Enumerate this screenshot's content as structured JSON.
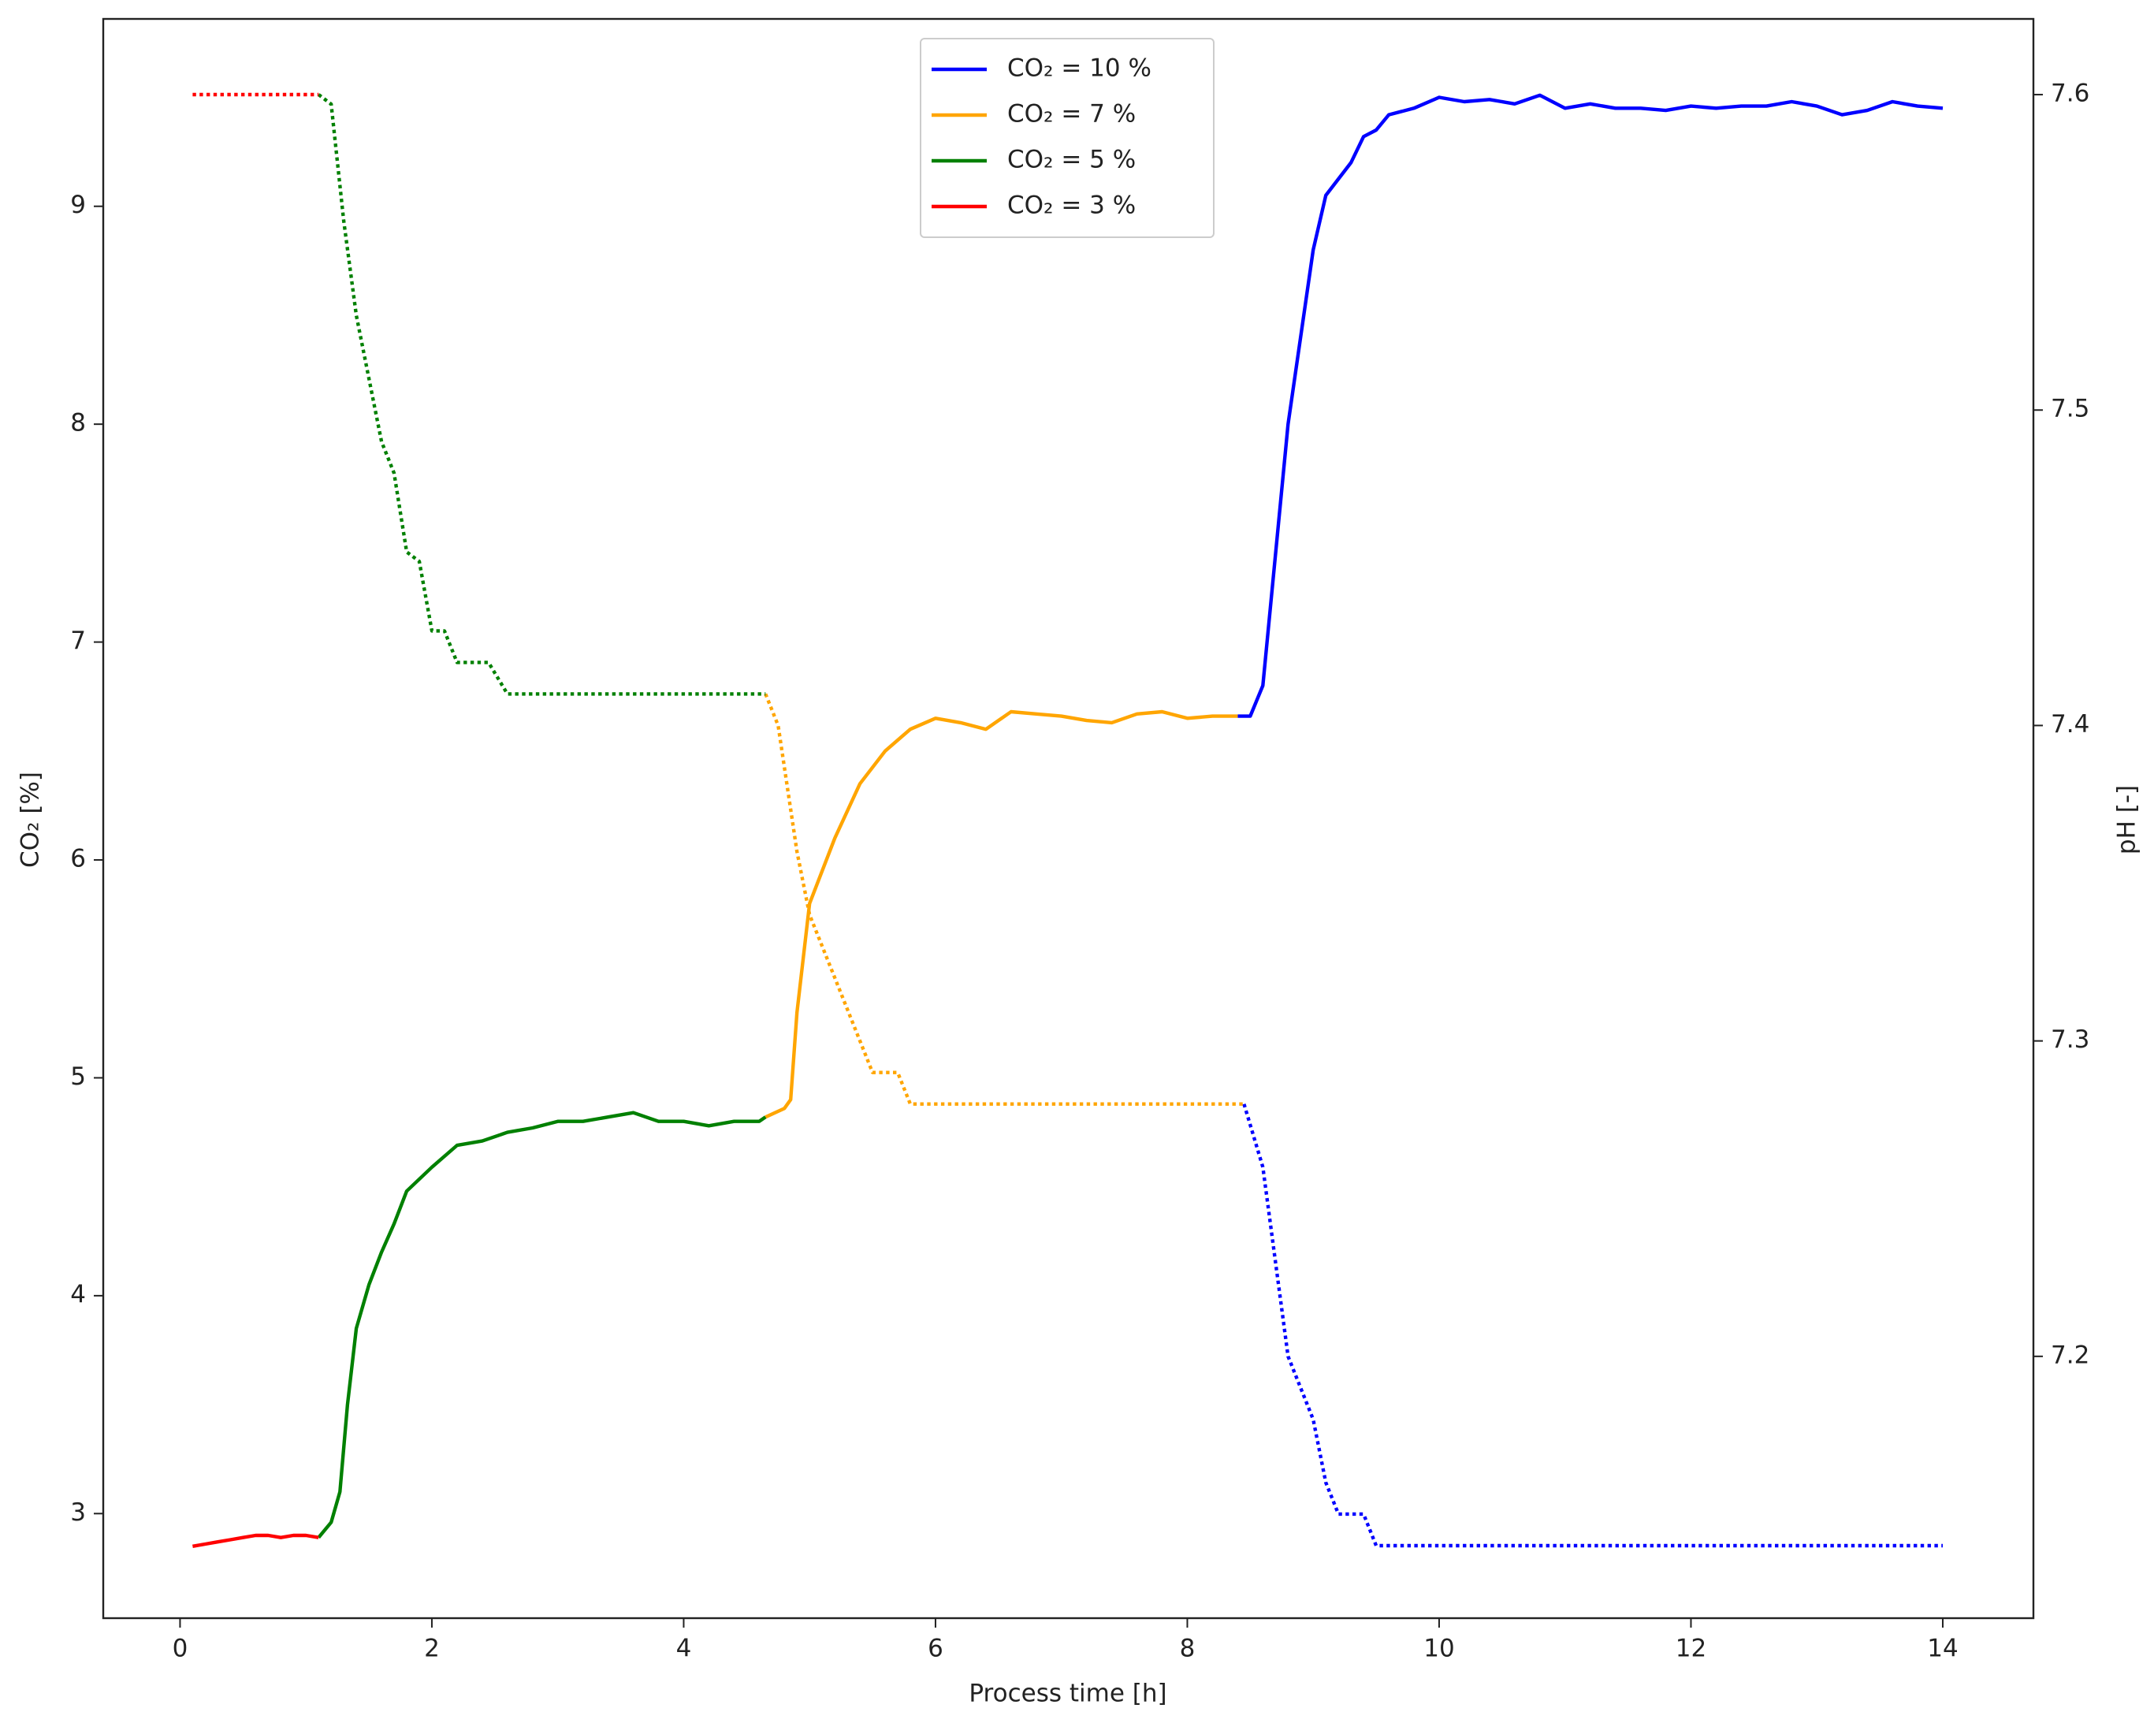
{
  "chart_data": {
    "type": "line",
    "x_label": "Process time [h]",
    "y_label": "CO₂ [%]",
    "y2_label": "pH [-]",
    "xlim": [
      -0.61,
      14.72
    ],
    "ylim": [
      2.52,
      9.86
    ],
    "y2lim": [
      7.117,
      7.624
    ],
    "xticks": [
      0,
      2,
      4,
      6,
      8,
      10,
      12,
      14
    ],
    "yticks": [
      3,
      4,
      5,
      6,
      7,
      8,
      9
    ],
    "y2ticks": [
      7.2,
      7.3,
      7.4,
      7.5,
      7.6
    ],
    "legend": "upper center",
    "series": [
      {
        "name": "CO₂ = 10 %",
        "color": "#0000ff",
        "style": "solid",
        "x": [
          8.4,
          8.5,
          8.6,
          8.8,
          9.0,
          9.1,
          9.3,
          9.4,
          9.5,
          9.6,
          9.8,
          10.0,
          10.2,
          10.4,
          10.6,
          10.8,
          11.0,
          11.2,
          11.4,
          11.6,
          11.8,
          12.0,
          12.2,
          12.4,
          12.6,
          12.8,
          13.0,
          13.2,
          13.4,
          13.6,
          13.8,
          14.0
        ],
        "values": [
          6.66,
          6.66,
          6.8,
          8.0,
          8.8,
          9.05,
          9.2,
          9.32,
          9.35,
          9.42,
          9.45,
          9.5,
          9.48,
          9.49,
          9.47,
          9.51,
          9.45,
          9.47,
          9.45,
          9.45,
          9.44,
          9.46,
          9.45,
          9.46,
          9.46,
          9.48,
          9.46,
          9.42,
          9.44,
          9.48,
          9.46,
          9.45
        ]
      },
      {
        "name": "CO₂ = 7 %",
        "color": "#ffa500",
        "style": "solid",
        "x": [
          4.65,
          4.8,
          4.85,
          4.9,
          5.0,
          5.2,
          5.4,
          5.6,
          5.8,
          6.0,
          6.2,
          6.4,
          6.6,
          6.8,
          7.0,
          7.2,
          7.4,
          7.6,
          7.8,
          8.0,
          8.2,
          8.4
        ],
        "values": [
          4.82,
          4.86,
          4.9,
          5.3,
          5.8,
          6.1,
          6.35,
          6.5,
          6.6,
          6.65,
          6.63,
          6.6,
          6.68,
          6.67,
          6.66,
          6.64,
          6.63,
          6.67,
          6.68,
          6.65,
          6.66,
          6.66
        ]
      },
      {
        "name": "CO₂ = 5 %",
        "color": "#008000",
        "style": "solid",
        "x": [
          1.1,
          1.2,
          1.27,
          1.33,
          1.4,
          1.5,
          1.6,
          1.7,
          1.8,
          2.0,
          2.2,
          2.4,
          2.6,
          2.8,
          3.0,
          3.2,
          3.4,
          3.6,
          3.8,
          4.0,
          4.2,
          4.4,
          4.6,
          4.65
        ],
        "values": [
          2.89,
          2.96,
          3.1,
          3.5,
          3.85,
          4.05,
          4.2,
          4.33,
          4.48,
          4.59,
          4.69,
          4.71,
          4.75,
          4.77,
          4.8,
          4.8,
          4.82,
          4.84,
          4.8,
          4.8,
          4.78,
          4.8,
          4.8,
          4.82
        ]
      },
      {
        "name": "CO₂ = 3 %",
        "color": "#ff0000",
        "style": "solid",
        "x": [
          0.1,
          0.2,
          0.3,
          0.4,
          0.5,
          0.6,
          0.7,
          0.8,
          0.9,
          1.0,
          1.1
        ],
        "values": [
          2.85,
          2.86,
          2.87,
          2.88,
          2.89,
          2.9,
          2.9,
          2.89,
          2.9,
          2.9,
          2.89
        ]
      },
      {
        "color": "#0000ff",
        "style": "dotted",
        "axis": "y2",
        "x": [
          8.45,
          8.6,
          8.7,
          8.8,
          9.0,
          9.1,
          9.2,
          9.4,
          9.5,
          14.0
        ],
        "values": [
          7.28,
          7.26,
          7.23,
          7.2,
          7.18,
          7.16,
          7.15,
          7.15,
          7.14,
          7.14
        ]
      },
      {
        "color": "#ffa500",
        "style": "dotted",
        "axis": "y2",
        "x": [
          4.65,
          4.75,
          4.9,
          5.0,
          5.2,
          5.5,
          5.7,
          5.8,
          8.45
        ],
        "values": [
          7.41,
          7.4,
          7.36,
          7.34,
          7.32,
          7.29,
          7.29,
          7.28,
          7.28
        ]
      },
      {
        "color": "#008000",
        "style": "dotted",
        "axis": "y2",
        "x": [
          1.1,
          1.2,
          1.3,
          1.4,
          1.6,
          1.7,
          1.8,
          1.9,
          2.0,
          2.1,
          2.2,
          2.45,
          2.6,
          4.65
        ],
        "values": [
          7.6,
          7.597,
          7.56,
          7.53,
          7.49,
          7.48,
          7.455,
          7.452,
          7.43,
          7.43,
          7.42,
          7.42,
          7.41,
          7.41
        ]
      },
      {
        "color": "#ff0000",
        "style": "dotted",
        "axis": "y2",
        "x": [
          0.1,
          1.1
        ],
        "values": [
          7.6,
          7.6
        ]
      }
    ]
  }
}
